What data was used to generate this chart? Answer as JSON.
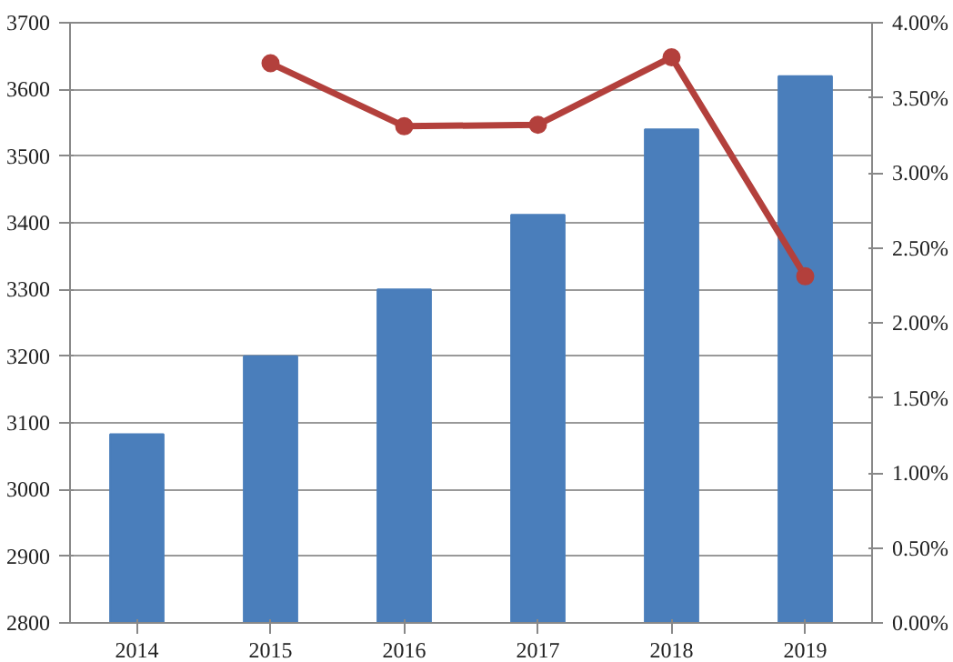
{
  "chart_data": {
    "type": "bar",
    "categories": [
      "2014",
      "2015",
      "2016",
      "2017",
      "2018",
      "2019"
    ],
    "series": [
      {
        "color": "#4a7ebb",
        "values": [
          3083,
          3200,
          3300,
          3412,
          3540,
          3620
        ]
      },
      {
        "type": "line",
        "axis": "y2",
        "color": "#b3403c",
        "marker": "circle",
        "line_style": "solid",
        "values": [
          null,
          3.73,
          3.31,
          3.32,
          3.77,
          2.31
        ]
      }
    ],
    "ylim": [
      2800,
      3700
    ],
    "yticks": [
      2800,
      2900,
      3000,
      3100,
      3200,
      3300,
      3400,
      3500,
      3600,
      3700
    ],
    "y2lim": [
      0,
      4
    ],
    "y2ticks": [
      {
        "value": 0,
        "label": "0.00%"
      },
      {
        "value": 0.5,
        "label": "0.50%"
      },
      {
        "value": 1,
        "label": "1.00%"
      },
      {
        "value": 1.5,
        "label": "1.50%"
      },
      {
        "value": 2,
        "label": "2.00%"
      },
      {
        "value": 2.5,
        "label": "2.50%"
      },
      {
        "value": 3,
        "label": "3.00%"
      },
      {
        "value": 3.5,
        "label": "3.50%"
      },
      {
        "value": 4,
        "label": "4.00%"
      }
    ],
    "grid": "y"
  }
}
